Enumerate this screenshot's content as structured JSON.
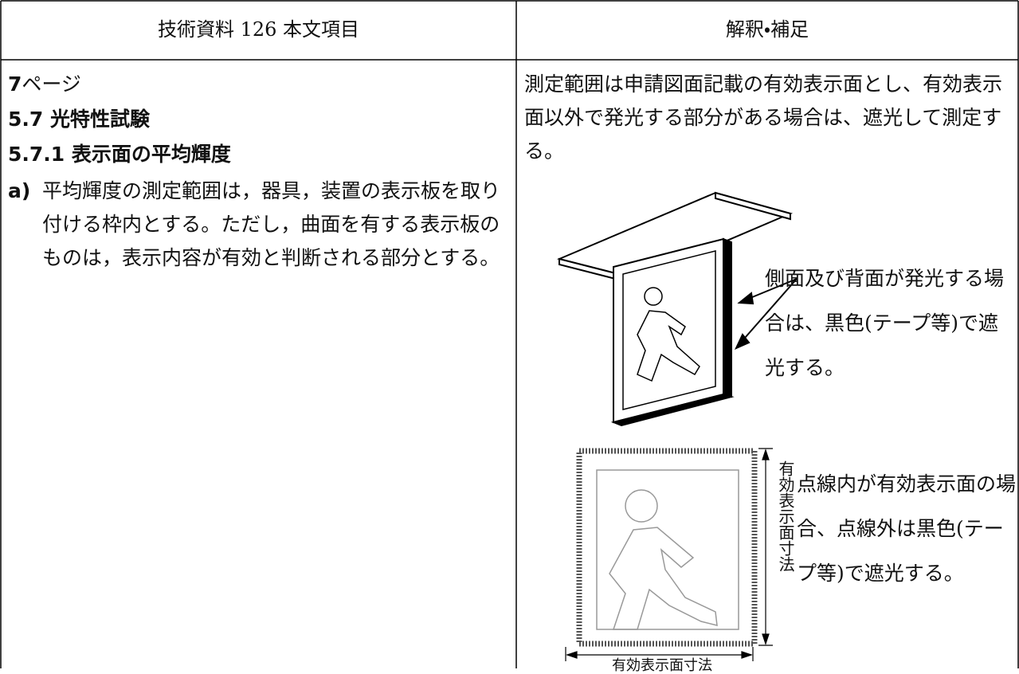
{
  "header": {
    "left": "技術資料 126 本文項目",
    "right": "解釈・補足"
  },
  "left": {
    "page_number": "7",
    "page_label": "ページ",
    "section": "5.7 光特性試験",
    "subsection": "5.7.1 表示面の平均輝度",
    "item_label": "a)",
    "item_text": "平均輝度の測定範囲は，器具，装置の表示板を取り付ける枠内とする。ただし，曲面を有する表示板のものは，表示内容が有効と判断される部分とする。"
  },
  "right": {
    "paragraph": "測定範囲は申請図面記載の有効表示面とし、有効表示面以外で発光する部分がある場合は、遮光して測定する。",
    "figure1_note": "側面及び背面が発光する場合は、黒色(テープ等)で遮光する。",
    "figure2_note": "点線内が有効表示面の場合、点線外は黒色(テープ等)で遮光する。",
    "figure2_vertical_label": "有効表示面寸法",
    "figure2_horizontal_label": "有効表示面寸法"
  }
}
